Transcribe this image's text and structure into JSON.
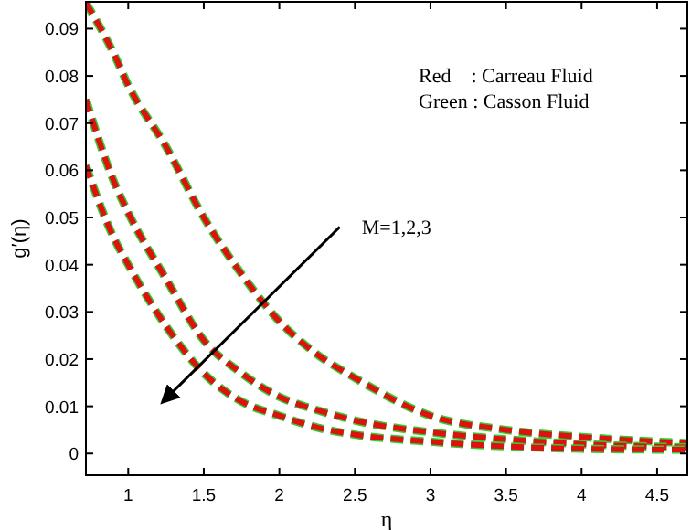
{
  "chart_data": {
    "type": "line",
    "xlabel": "η",
    "ylabel": "g′(η)",
    "xlim": [
      0.72,
      4.7
    ],
    "ylim": [
      -0.0046,
      0.0957
    ],
    "xticks": [
      1,
      1.5,
      2,
      2.5,
      3,
      3.5,
      4,
      4.5
    ],
    "yticks": [
      0,
      0.01,
      0.02,
      0.03,
      0.04,
      0.05,
      0.06,
      0.07,
      0.08,
      0.09
    ],
    "grid": false,
    "line_style": "dashed",
    "x": [
      0.72,
      0.9,
      1,
      1.25,
      1.5,
      1.75,
      2,
      2.25,
      2.5,
      3,
      3.5,
      4,
      4.7
    ],
    "series": [
      {
        "color": "#33cc33",
        "values": [
          0.0955,
          0.085,
          0.078,
          0.065,
          0.05,
          0.038,
          0.028,
          0.021,
          0.016,
          0.008,
          0.005,
          0.0035,
          0.0022
        ]
      },
      {
        "color": "#dd1111",
        "values": [
          0.0955,
          0.085,
          0.078,
          0.065,
          0.05,
          0.038,
          0.028,
          0.021,
          0.016,
          0.008,
          0.005,
          0.0035,
          0.0022
        ]
      },
      {
        "color": "#33cc33",
        "values": [
          0.075,
          0.058,
          0.051,
          0.037,
          0.024,
          0.017,
          0.012,
          0.0092,
          0.007,
          0.0045,
          0.003,
          0.002,
          0.0013
        ]
      },
      {
        "color": "#dd1111",
        "values": [
          0.075,
          0.058,
          0.051,
          0.037,
          0.024,
          0.017,
          0.012,
          0.0092,
          0.007,
          0.0045,
          0.003,
          0.002,
          0.0013
        ]
      },
      {
        "color": "#33cc33",
        "values": [
          0.061,
          0.046,
          0.04,
          0.027,
          0.017,
          0.011,
          0.008,
          0.0055,
          0.004,
          0.0025,
          0.0015,
          0.001,
          0.0008
        ]
      },
      {
        "color": "#dd1111",
        "values": [
          0.061,
          0.046,
          0.04,
          0.027,
          0.017,
          0.011,
          0.008,
          0.0055,
          0.004,
          0.0025,
          0.0015,
          0.001,
          0.0008
        ]
      }
    ],
    "annotations": [
      "Red    : Carreau Fluid",
      "Green : Casson Fluid",
      "M=1,2,3"
    ]
  }
}
